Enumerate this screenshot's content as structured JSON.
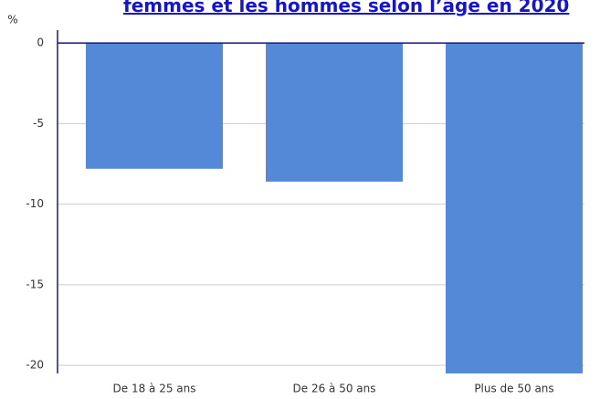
{
  "chart_data": {
    "type": "bar",
    "title": "femmes et les hommes selon l’âge en 2020",
    "y_label": "%",
    "categories": [
      "De 18 à 25 ans",
      "De 26 à 50 ans",
      "Plus de 50 ans"
    ],
    "values": [
      -7.8,
      -8.6,
      -20.5
    ],
    "color": "#5389d6",
    "ylim": [
      -20.5,
      0.8
    ],
    "yticks": [
      0,
      -5,
      -10,
      -15,
      -20
    ],
    "grid": true
  }
}
